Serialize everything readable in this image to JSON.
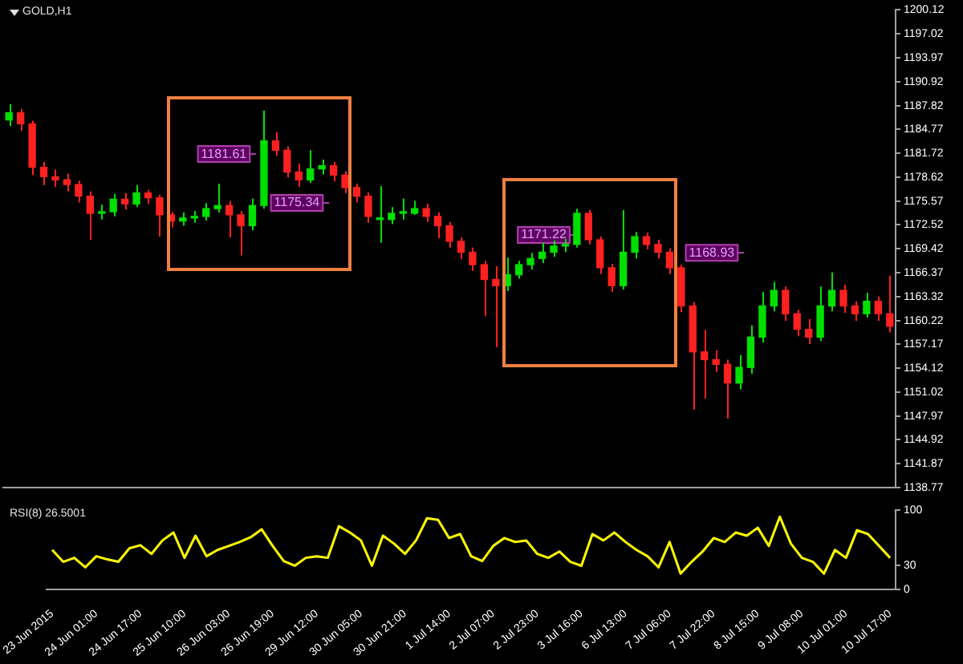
{
  "chart_data": [
    {
      "type": "candlestick",
      "title": "GOLD,H1",
      "categories": [
        null,
        null,
        null,
        null,
        null,
        null,
        null,
        null,
        null,
        null,
        null,
        null,
        null,
        null,
        null,
        null,
        null,
        null,
        null,
        null,
        null,
        null,
        null,
        null,
        null,
        null,
        null,
        null,
        null,
        null,
        null,
        null,
        null,
        null,
        null,
        null,
        null,
        null,
        null,
        null,
        null,
        null,
        null,
        null,
        null,
        null,
        null,
        null,
        null,
        null,
        null,
        null,
        null,
        null,
        null,
        null,
        null,
        null,
        null,
        null,
        null,
        null,
        null,
        null,
        null,
        null,
        null,
        null,
        null,
        null,
        null,
        null,
        null,
        null,
        null,
        null,
        null
      ],
      "ohlc": [
        [
          1186.0,
          1188.0,
          1185.2,
          1186.9
        ],
        [
          1186.9,
          1187.4,
          1184.6,
          1185.5
        ],
        [
          1185.5,
          1185.9,
          1178.9,
          1179.9
        ],
        [
          1179.9,
          1180.6,
          1177.6,
          1178.7
        ],
        [
          1178.7,
          1179.6,
          1177.4,
          1178.3
        ],
        [
          1178.3,
          1179.1,
          1176.8,
          1177.7
        ],
        [
          1177.7,
          1178.2,
          1175.4,
          1176.2
        ],
        [
          1176.2,
          1176.8,
          1170.6,
          1174.0
        ],
        [
          1174.0,
          1175.1,
          1173.2,
          1174.2
        ],
        [
          1174.2,
          1176.5,
          1173.6,
          1175.8
        ],
        [
          1175.8,
          1176.6,
          1174.5,
          1175.2
        ],
        [
          1175.2,
          1177.6,
          1174.8,
          1176.6
        ],
        [
          1176.6,
          1177.0,
          1175.2,
          1176.0
        ],
        [
          1176.0,
          1176.4,
          1171.0,
          1173.8
        ],
        [
          1173.8,
          1174.2,
          1172.2,
          1173.0
        ],
        [
          1173.0,
          1174.1,
          1172.4,
          1173.4
        ],
        [
          1173.4,
          1174.3,
          1172.8,
          1173.6
        ],
        [
          1173.6,
          1175.3,
          1173.1,
          1174.6
        ],
        [
          1174.6,
          1177.8,
          1174.1,
          1175.0
        ],
        [
          1175.0,
          1175.6,
          1170.9,
          1173.8
        ],
        [
          1173.8,
          1174.3,
          1168.6,
          1172.4
        ],
        [
          1172.4,
          1175.9,
          1171.8,
          1175.0
        ],
        [
          1175.0,
          1187.2,
          1174.6,
          1183.3
        ],
        [
          1183.3,
          1184.4,
          1181.4,
          1182.1
        ],
        [
          1182.1,
          1182.6,
          1178.6,
          1179.3
        ],
        [
          1179.3,
          1180.4,
          1177.4,
          1178.3
        ],
        [
          1178.3,
          1182.1,
          1177.9,
          1179.7
        ],
        [
          1179.7,
          1180.9,
          1179.0,
          1180.1
        ],
        [
          1180.1,
          1180.6,
          1178.1,
          1178.9
        ],
        [
          1178.9,
          1179.4,
          1176.6,
          1177.3
        ],
        [
          1177.3,
          1177.8,
          1175.4,
          1176.2
        ],
        [
          1176.2,
          1176.7,
          1172.8,
          1173.6
        ],
        [
          1173.2,
          1177.5,
          1170.2,
          1173.2
        ],
        [
          1173.2,
          1174.8,
          1172.6,
          1174.0
        ],
        [
          1174.0,
          1175.9,
          1173.2,
          1174.0
        ],
        [
          1174.0,
          1175.6,
          1173.8,
          1174.6
        ],
        [
          1174.6,
          1175.2,
          1172.9,
          1173.6
        ],
        [
          1173.6,
          1174.1,
          1170.8,
          1172.4
        ],
        [
          1172.4,
          1172.9,
          1169.6,
          1170.4
        ],
        [
          1170.4,
          1170.9,
          1168.1,
          1169.0
        ],
        [
          1169.0,
          1169.6,
          1166.6,
          1167.4
        ],
        [
          1167.4,
          1167.9,
          1160.8,
          1165.5
        ],
        [
          1165.5,
          1167.2,
          1156.8,
          1164.7
        ],
        [
          1164.7,
          1168.3,
          1164.0,
          1166.1
        ],
        [
          1166.1,
          1167.9,
          1165.6,
          1167.4
        ],
        [
          1167.4,
          1168.9,
          1166.8,
          1168.2
        ],
        [
          1168.2,
          1170.2,
          1167.6,
          1169.0
        ],
        [
          1169.0,
          1170.5,
          1168.4,
          1169.8
        ],
        [
          1169.8,
          1170.7,
          1169.0,
          1170.0
        ],
        [
          1170.0,
          1174.6,
          1169.6,
          1174.0
        ],
        [
          1174.0,
          1174.4,
          1170.0,
          1170.6
        ],
        [
          1170.6,
          1171.0,
          1166.2,
          1167.0
        ],
        [
          1167.0,
          1167.5,
          1163.9,
          1164.7
        ],
        [
          1164.7,
          1174.4,
          1164.2,
          1169.0
        ],
        [
          1169.0,
          1171.6,
          1168.2,
          1171.0
        ],
        [
          1171.0,
          1171.5,
          1169.4,
          1170.0
        ],
        [
          1170.0,
          1170.6,
          1168.2,
          1169.0
        ],
        [
          1169.0,
          1169.5,
          1166.2,
          1167.0
        ],
        [
          1167.0,
          1167.4,
          1161.3,
          1162.1
        ],
        [
          1162.1,
          1162.6,
          1148.8,
          1156.2
        ],
        [
          1156.2,
          1159.0,
          1150.2,
          1155.2
        ],
        [
          1155.2,
          1156.4,
          1153.6,
          1154.6
        ],
        [
          1154.6,
          1155.2,
          1147.6,
          1152.2
        ],
        [
          1152.2,
          1155.8,
          1151.4,
          1154.2
        ],
        [
          1154.2,
          1159.6,
          1153.4,
          1158.1
        ],
        [
          1158.1,
          1163.9,
          1157.4,
          1162.1
        ],
        [
          1162.1,
          1165.2,
          1161.4,
          1164.1
        ],
        [
          1164.1,
          1164.6,
          1160.2,
          1161.1
        ],
        [
          1161.1,
          1161.6,
          1158.2,
          1159.1
        ],
        [
          1159.1,
          1160.4,
          1157.2,
          1158.1
        ],
        [
          1158.1,
          1164.6,
          1157.6,
          1162.1
        ],
        [
          1162.1,
          1166.4,
          1161.4,
          1164.1
        ],
        [
          1164.1,
          1164.8,
          1161.2,
          1162.1
        ],
        [
          1162.1,
          1162.7,
          1160.2,
          1161.1
        ],
        [
          1161.1,
          1163.8,
          1160.6,
          1162.7
        ],
        [
          1162.7,
          1163.3,
          1160.2,
          1161.1
        ],
        [
          1161.1,
          1166.0,
          1158.7,
          1159.5
        ]
      ],
      "colors": [
        "#00e000",
        "#ff2020",
        "#ff2020",
        "#ff2020",
        "#ff2020",
        "#ff2020",
        "#ff2020",
        "#ff2020",
        "#00e000",
        "#00e000",
        "#ff2020",
        "#00e000",
        "#ff2020",
        "#ff2020",
        "#ff2020",
        "#00e000",
        "#00e000",
        "#00e000",
        "#00e000",
        "#ff2020",
        "#ff2020",
        "#00e000",
        "#00e000",
        "#ff2020",
        "#ff2020",
        "#ff2020",
        "#00e000",
        "#00e000",
        "#ff2020",
        "#ff2020",
        "#ff2020",
        "#ff2020",
        "#00e000",
        "#00e000",
        "#00e000",
        "#00e000",
        "#ff2020",
        "#ff2020",
        "#ff2020",
        "#ff2020",
        "#ff2020",
        "#ff2020",
        "#ff2020",
        "#00e000",
        "#00e000",
        "#00e000",
        "#00e000",
        "#00e000",
        "#00e000",
        "#00e000",
        "#ff2020",
        "#ff2020",
        "#ff2020",
        "#00e000",
        "#00e000",
        "#ff2020",
        "#ff2020",
        "#ff2020",
        "#ff2020",
        "#ff2020",
        "#ff2020",
        "#ff2020",
        "#ff2020",
        "#00e000",
        "#00e000",
        "#00e000",
        "#00e000",
        "#ff2020",
        "#ff2020",
        "#ff2020",
        "#00e000",
        "#00e000",
        "#ff2020",
        "#ff2020",
        "#00e000",
        "#ff2020",
        "#ff2020"
      ],
      "ylim": [
        1138.77,
        1200.12
      ],
      "yticks": [
        1138.77,
        1141.87,
        1144.92,
        1147.97,
        1151.02,
        1154.12,
        1157.17,
        1160.22,
        1163.32,
        1166.37,
        1169.42,
        1172.52,
        1175.57,
        1178.62,
        1181.72,
        1184.77,
        1187.82,
        1190.92,
        1193.97,
        1197.02,
        1200.12
      ],
      "tick_labels": "y",
      "annotations": [
        {
          "text": "1181.61",
          "y": 1181.61
        },
        {
          "text": "1175.34",
          "y": 1175.34
        },
        {
          "text": "1171.22",
          "y": 1171.22
        },
        {
          "text": "1168.93",
          "y": 1168.93
        }
      ]
    },
    {
      "type": "line",
      "title": "RSI(8) 26.5001",
      "categories": [
        "23 Jun 2015",
        null,
        null,
        null,
        "24 Jun 01:00",
        null,
        null,
        null,
        "24 Jun 17:00",
        null,
        null,
        null,
        "25 Jun 10:00",
        null,
        null,
        null,
        "26 Jun 03:00",
        null,
        null,
        null,
        "26 Jun 19:00",
        null,
        null,
        null,
        "29 Jun 12:00",
        null,
        null,
        null,
        "30 Jun 05:00",
        null,
        null,
        null,
        "30 Jun 21:00",
        null,
        null,
        null,
        "1 Jul 14:00",
        null,
        null,
        null,
        "2 Jul 07:00",
        null,
        null,
        null,
        "2 Jul 23:00",
        null,
        null,
        null,
        "3 Jul 16:00",
        null,
        null,
        null,
        "6 Jul 13:00",
        null,
        null,
        null,
        "7 Jul 06:00",
        null,
        null,
        null,
        "7 Jul 22:00",
        null,
        null,
        null,
        "8 Jul 15:00",
        null,
        null,
        null,
        "9 Jul 08:00",
        null,
        null,
        null,
        "10 Jul 01:00",
        null,
        null,
        null,
        "10 Jul 17:00"
      ],
      "series": [
        {
          "color": "#ffff00",
          "values": [
            50,
            35,
            40,
            28,
            42,
            38,
            35,
            52,
            56,
            45,
            62,
            72,
            40,
            68,
            42,
            50,
            55,
            60,
            66,
            76,
            55,
            36,
            30,
            40,
            42,
            40,
            80,
            72,
            62,
            30,
            68,
            58,
            45,
            62,
            90,
            88,
            65,
            70,
            42,
            36,
            55,
            65,
            60,
            62,
            45,
            40,
            48,
            35,
            30,
            70,
            62,
            72,
            60,
            50,
            42,
            28,
            60,
            20,
            35,
            48,
            65,
            60,
            72,
            68,
            78,
            55,
            92,
            58,
            40,
            35,
            20,
            50,
            40,
            75,
            70,
            55,
            40
          ]
        }
      ],
      "ylim": [
        0,
        100
      ],
      "yticks": [
        0,
        30,
        100
      ]
    }
  ]
}
